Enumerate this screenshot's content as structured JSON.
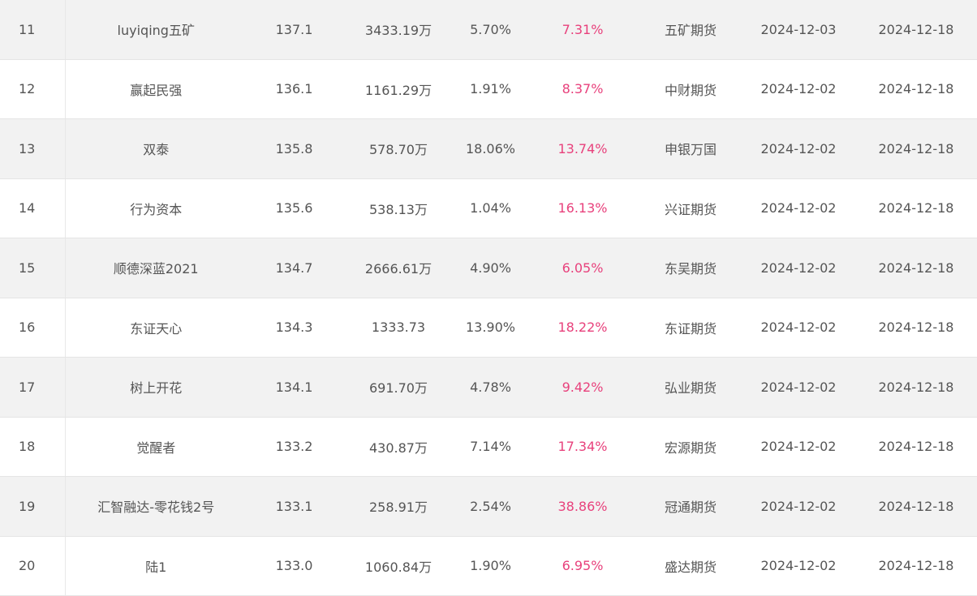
{
  "colors": {
    "row_shade": "#f2f2f2",
    "text": "#555555",
    "return_highlight": "#e8417c"
  },
  "rows": [
    {
      "rank": "11",
      "name": "luyiqing五矿",
      "score": "137.1",
      "scale": "3433.19万",
      "drawdown": "5.70%",
      "return": "7.31%",
      "broker": "五矿期货",
      "start": "2024-12-03",
      "end": "2024-12-18"
    },
    {
      "rank": "12",
      "name": "赢起民强",
      "score": "136.1",
      "scale": "1161.29万",
      "drawdown": "1.91%",
      "return": "8.37%",
      "broker": "中财期货",
      "start": "2024-12-02",
      "end": "2024-12-18"
    },
    {
      "rank": "13",
      "name": "双泰",
      "score": "135.8",
      "scale": "578.70万",
      "drawdown": "18.06%",
      "return": "13.74%",
      "broker": "申银万国",
      "start": "2024-12-02",
      "end": "2024-12-18"
    },
    {
      "rank": "14",
      "name": "行为资本",
      "score": "135.6",
      "scale": "538.13万",
      "drawdown": "1.04%",
      "return": "16.13%",
      "broker": "兴证期货",
      "start": "2024-12-02",
      "end": "2024-12-18"
    },
    {
      "rank": "15",
      "name": "顺德深蓝2021",
      "score": "134.7",
      "scale": "2666.61万",
      "drawdown": "4.90%",
      "return": "6.05%",
      "broker": "东吴期货",
      "start": "2024-12-02",
      "end": "2024-12-18"
    },
    {
      "rank": "16",
      "name": "东证天心",
      "score": "134.3",
      "scale": "1333.73",
      "drawdown": "13.90%",
      "return": "18.22%",
      "broker": "东证期货",
      "start": "2024-12-02",
      "end": "2024-12-18"
    },
    {
      "rank": "17",
      "name": "树上开花",
      "score": "134.1",
      "scale": "691.70万",
      "drawdown": "4.78%",
      "return": "9.42%",
      "broker": "弘业期货",
      "start": "2024-12-02",
      "end": "2024-12-18"
    },
    {
      "rank": "18",
      "name": "觉醒者",
      "score": "133.2",
      "scale": "430.87万",
      "drawdown": "7.14%",
      "return": "17.34%",
      "broker": "宏源期货",
      "start": "2024-12-02",
      "end": "2024-12-18"
    },
    {
      "rank": "19",
      "name": "汇智融达-零花钱2号",
      "score": "133.1",
      "scale": "258.91万",
      "drawdown": "2.54%",
      "return": "38.86%",
      "broker": "冠通期货",
      "start": "2024-12-02",
      "end": "2024-12-18"
    },
    {
      "rank": "20",
      "name": "陆1",
      "score": "133.0",
      "scale": "1060.84万",
      "drawdown": "1.90%",
      "return": "6.95%",
      "broker": "盛达期货",
      "start": "2024-12-02",
      "end": "2024-12-18"
    }
  ]
}
